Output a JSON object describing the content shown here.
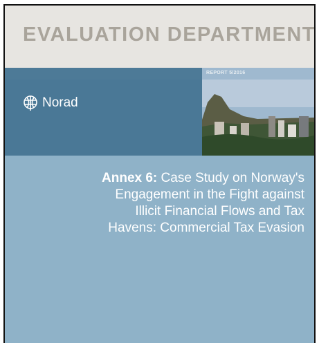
{
  "header": {
    "title": "EVALUATION DEPARTMENT",
    "report_number": "REPORT 5/2016"
  },
  "logo": {
    "text": "Norad"
  },
  "annex": {
    "label": "Annex 6:",
    "title_lines": [
      "Case Study on Norway's",
      "Engagement in the Fight against",
      "Illicit Financial Flows and Tax",
      "Havens: Commercial Tax Evasion"
    ]
  }
}
